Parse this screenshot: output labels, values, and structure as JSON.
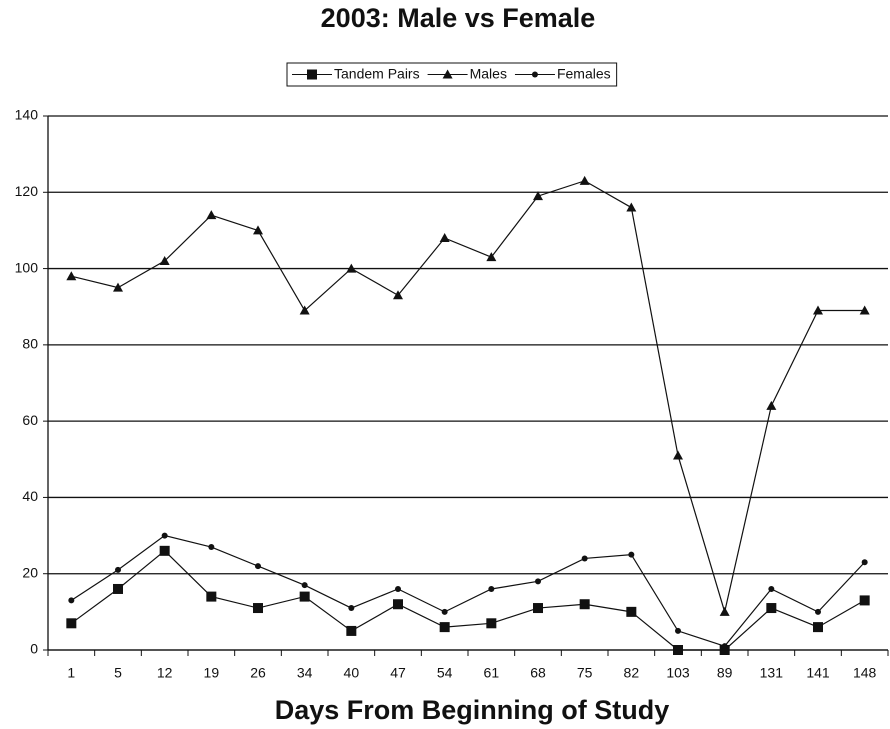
{
  "chart_data": {
    "type": "line",
    "title": "2003: Male vs Female",
    "x_label": "Days From Beginning of Study",
    "categories": [
      "1",
      "5",
      "12",
      "19",
      "26",
      "34",
      "40",
      "47",
      "54",
      "61",
      "68",
      "75",
      "82",
      "103",
      "89",
      "131",
      "141",
      "148"
    ],
    "series": [
      {
        "name": "Tandem Pairs",
        "color": "#111111",
        "marker": "square",
        "values": [
          7,
          16,
          26,
          14,
          11,
          14,
          5,
          12,
          6,
          7,
          11,
          12,
          10,
          0,
          0,
          11,
          6,
          13
        ]
      },
      {
        "name": "Males",
        "color": "#111111",
        "marker": "triangle",
        "values": [
          98,
          95,
          102,
          114,
          110,
          89,
          100,
          93,
          108,
          103,
          119,
          123,
          116,
          51,
          10,
          64,
          89,
          89
        ]
      },
      {
        "name": "Females",
        "color": "#111111",
        "marker": "circle",
        "values": [
          13,
          21,
          30,
          27,
          22,
          17,
          11,
          16,
          10,
          16,
          18,
          24,
          25,
          5,
          1,
          16,
          10,
          23
        ]
      }
    ],
    "ylim": [
      0,
      140
    ],
    "yticks": [
      0,
      20,
      40,
      60,
      80,
      100,
      120,
      140
    ],
    "grid": true,
    "legend": "top"
  }
}
